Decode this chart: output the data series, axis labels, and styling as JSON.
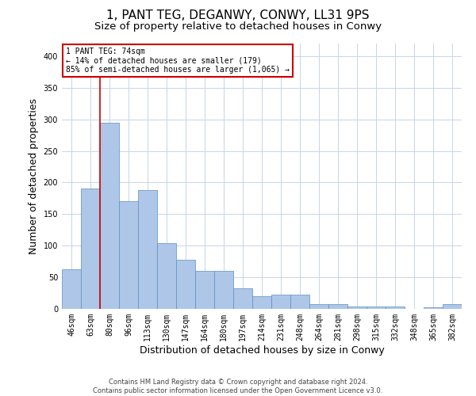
{
  "title_line1": "1, PANT TEG, DEGANWY, CONWY, LL31 9PS",
  "title_line2": "Size of property relative to detached houses in Conwy",
  "xlabel": "Distribution of detached houses by size in Conwy",
  "ylabel": "Number of detached properties",
  "categories": [
    "46sqm",
    "63sqm",
    "80sqm",
    "96sqm",
    "113sqm",
    "130sqm",
    "147sqm",
    "164sqm",
    "180sqm",
    "197sqm",
    "214sqm",
    "231sqm",
    "248sqm",
    "264sqm",
    "281sqm",
    "298sqm",
    "315sqm",
    "332sqm",
    "348sqm",
    "365sqm",
    "382sqm"
  ],
  "values": [
    63,
    190,
    295,
    170,
    188,
    104,
    78,
    60,
    60,
    33,
    20,
    23,
    23,
    8,
    7,
    4,
    4,
    4,
    0,
    3,
    7
  ],
  "bar_color": "#aec6e8",
  "bar_edge_color": "#5a8fc0",
  "annotation_line1": "1 PANT TEG: 74sqm",
  "annotation_line2": "← 14% of detached houses are smaller (179)",
  "annotation_line3": "85% of semi-detached houses are larger (1,065) →",
  "annotation_box_color": "#ffffff",
  "annotation_box_edge_color": "#cc0000",
  "vline_color": "#cc0000",
  "vline_x": 1.5,
  "ylim": [
    0,
    420
  ],
  "yticks": [
    0,
    50,
    100,
    150,
    200,
    250,
    300,
    350,
    400
  ],
  "footer_line1": "Contains HM Land Registry data © Crown copyright and database right 2024.",
  "footer_line2": "Contains public sector information licensed under the Open Government Licence v3.0.",
  "background_color": "#ffffff",
  "grid_color": "#c8d4e8",
  "title_fontsize": 11,
  "subtitle_fontsize": 9.5,
  "tick_fontsize": 7,
  "label_fontsize": 9,
  "annotation_fontsize": 7,
  "footer_fontsize": 6
}
